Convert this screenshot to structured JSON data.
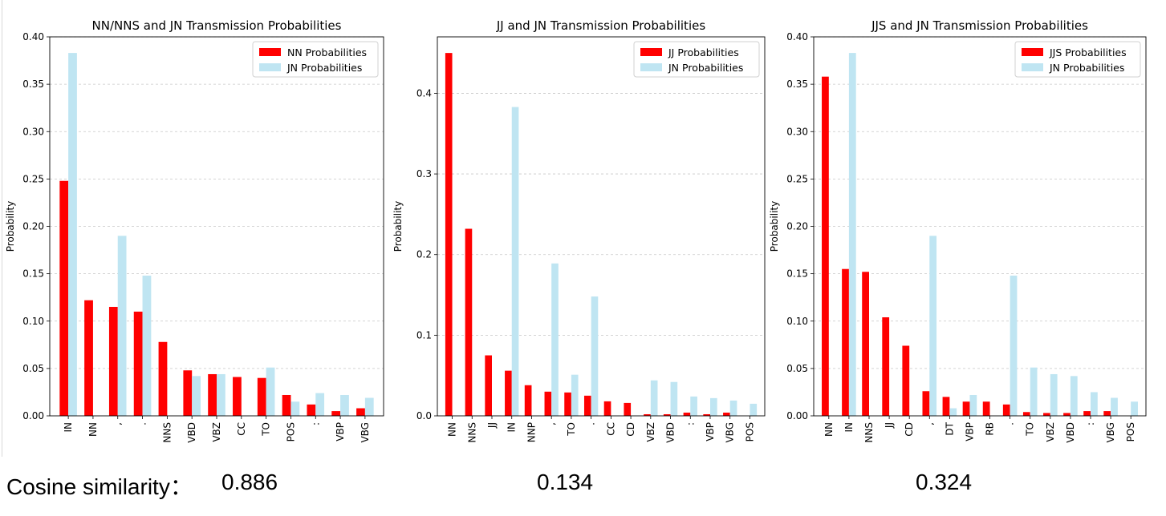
{
  "colors": {
    "primary": "#ff0000",
    "jn": "#bfe5f2",
    "grid": "#b0b0b0"
  },
  "chart_data": [
    {
      "type": "bar",
      "title": "NN/NNS and JN Transmission Probabilities",
      "xlabel": "",
      "ylabel": "Probability",
      "ylim": [
        0,
        0.4
      ],
      "yticks": [
        0.0,
        0.05,
        0.1,
        0.15,
        0.2,
        0.25,
        0.3,
        0.35,
        0.4
      ],
      "ytick_labels": [
        "0.00",
        "0.05",
        "0.10",
        "0.15",
        "0.20",
        "0.25",
        "0.30",
        "0.35",
        "0.40"
      ],
      "grid": "y-dashed",
      "legend_position": "top-right",
      "categories": [
        "IN",
        "NN",
        ",",
        ".",
        "NNS",
        "VBD",
        "VBZ",
        "CC",
        "TO",
        "POS",
        ":",
        "VBP",
        "VBG"
      ],
      "series": [
        {
          "name": "NN Probabilities",
          "color": "#ff0000",
          "values": [
            0.248,
            0.122,
            0.115,
            0.11,
            0.078,
            0.048,
            0.044,
            0.041,
            0.04,
            0.022,
            0.012,
            0.005,
            0.008
          ]
        },
        {
          "name": "JN Probabilities",
          "color": "#bfe5f2",
          "values": [
            0.383,
            0.0,
            0.19,
            0.148,
            0.0,
            0.042,
            0.044,
            0.0,
            0.051,
            0.015,
            0.024,
            0.022,
            0.019
          ]
        }
      ]
    },
    {
      "type": "bar",
      "title": "JJ and JN Transmission Probabilities",
      "xlabel": "",
      "ylabel": "Probability",
      "ylim": [
        0,
        0.47
      ],
      "yticks": [
        0.0,
        0.1,
        0.2,
        0.3,
        0.4
      ],
      "ytick_labels": [
        "0.0",
        "0.1",
        "0.2",
        "0.3",
        "0.4"
      ],
      "grid": "y-dashed",
      "legend_position": "top-right",
      "categories": [
        "NN",
        "NNS",
        "JJ",
        "IN",
        "NNP",
        ",",
        "TO",
        ".",
        "CC",
        "CD",
        "VBZ",
        "VBD",
        ":",
        "VBP",
        "VBG",
        "POS"
      ],
      "series": [
        {
          "name": "JJ Probabilities",
          "color": "#ff0000",
          "values": [
            0.45,
            0.232,
            0.075,
            0.056,
            0.038,
            0.03,
            0.029,
            0.025,
            0.018,
            0.016,
            0.002,
            0.002,
            0.004,
            0.002,
            0.004,
            0.0
          ]
        },
        {
          "name": "JN Probabilities",
          "color": "#bfe5f2",
          "values": [
            0.0,
            0.0,
            0.0,
            0.383,
            0.0,
            0.189,
            0.051,
            0.148,
            0.0,
            0.0,
            0.044,
            0.042,
            0.024,
            0.022,
            0.019,
            0.015
          ]
        }
      ]
    },
    {
      "type": "bar",
      "title": "JJS and JN Transmission Probabilities",
      "xlabel": "",
      "ylabel": "Probability",
      "ylim": [
        0,
        0.4
      ],
      "yticks": [
        0.0,
        0.05,
        0.1,
        0.15,
        0.2,
        0.25,
        0.3,
        0.35,
        0.4
      ],
      "ytick_labels": [
        "0.00",
        "0.05",
        "0.10",
        "0.15",
        "0.20",
        "0.25",
        "0.30",
        "0.35",
        "0.40"
      ],
      "grid": "y-dashed",
      "legend_position": "top-right",
      "categories": [
        "NN",
        "IN",
        "NNS",
        "JJ",
        "CD",
        ",",
        "DT",
        "VBP",
        "RB",
        ".",
        "TO",
        "VBZ",
        "VBD",
        ":",
        "VBG",
        "POS"
      ],
      "series": [
        {
          "name": "JJS Probabilities",
          "color": "#ff0000",
          "values": [
            0.358,
            0.155,
            0.152,
            0.104,
            0.074,
            0.026,
            0.02,
            0.015,
            0.015,
            0.012,
            0.004,
            0.003,
            0.003,
            0.005,
            0.005,
            0.0
          ]
        },
        {
          "name": "JN Probabilities",
          "color": "#bfe5f2",
          "values": [
            0.0,
            0.383,
            0.0,
            0.0,
            0.0,
            0.19,
            0.008,
            0.022,
            0.0,
            0.148,
            0.051,
            0.044,
            0.042,
            0.025,
            0.019,
            0.015
          ]
        }
      ]
    }
  ],
  "similarity": {
    "label": "Cosine similarity：",
    "values": [
      "0.886",
      "0.134",
      "0.324"
    ]
  }
}
